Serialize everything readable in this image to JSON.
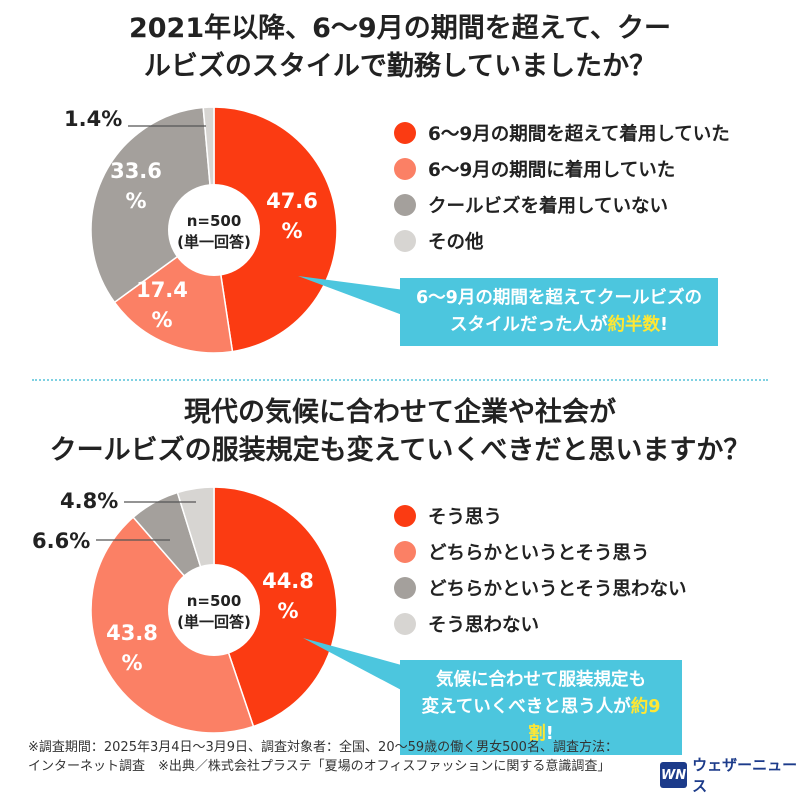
{
  "colors": {
    "strong_yes": "#fb3b12",
    "weak_yes": "#fb8065",
    "weak_no": "#a4a09c",
    "no": "#d7d5d2",
    "callout": "#4cc6de",
    "highlight": "#ffe733",
    "separator": "#7fd1e2"
  },
  "chart_data": [
    {
      "type": "pie",
      "title": "2021年以降、6〜9月の期間を超えて、クールビズのスタイルで勤務していましたか？",
      "center_label": "n=500\n(単一回答)",
      "categories": [
        "6〜9月の期間を超えて着用していた",
        "6〜9月の期間に着用していた",
        "クールビズを着用していない",
        "その他"
      ],
      "values": [
        47.6,
        17.4,
        33.6,
        1.4
      ],
      "value_labels": [
        "47.6\n%",
        "17.4\n%",
        "33.6\n%",
        "1.4%"
      ],
      "colors": [
        "#fb3b12",
        "#fb8065",
        "#a4a09c",
        "#d7d5d2"
      ],
      "legend_position": "right",
      "callout": {
        "prefix": "6〜9月の期間を超えてクールビズの\nスタイルだった人が",
        "highlight": "約半数",
        "suffix": "!"
      }
    },
    {
      "type": "pie",
      "title": "現代の気候に合わせて企業や社会が\nクールビズの服装規定も変えていくべきだと思いますか？",
      "center_label": "n=500\n(単一回答)",
      "categories": [
        "そう思う",
        "どちらかというとそう思う",
        "どちらかというとそう思わない",
        "そう思わない"
      ],
      "values": [
        44.8,
        43.8,
        6.6,
        4.8
      ],
      "value_labels": [
        "44.8\n%",
        "43.8\n%",
        "6.6%",
        "4.8%"
      ],
      "colors": [
        "#fb3b12",
        "#fb8065",
        "#a4a09c",
        "#d7d5d2"
      ],
      "legend_position": "right",
      "callout": {
        "prefix": "気候に合わせて服装規定も\n変えていくべきと思う人が",
        "highlight": "約9割",
        "suffix": "!"
      }
    }
  ],
  "footnote": "※調査期間：2025年3月4日〜3月9日、調査対象者：全国、20〜59歳の働く男女500名、調査方法：\nインターネット調査　※出典／株式会社プラステ「夏場のオフィスファッションに関する意識調査」",
  "logo": {
    "mark": "WN",
    "text": "ウェザーニュース"
  }
}
